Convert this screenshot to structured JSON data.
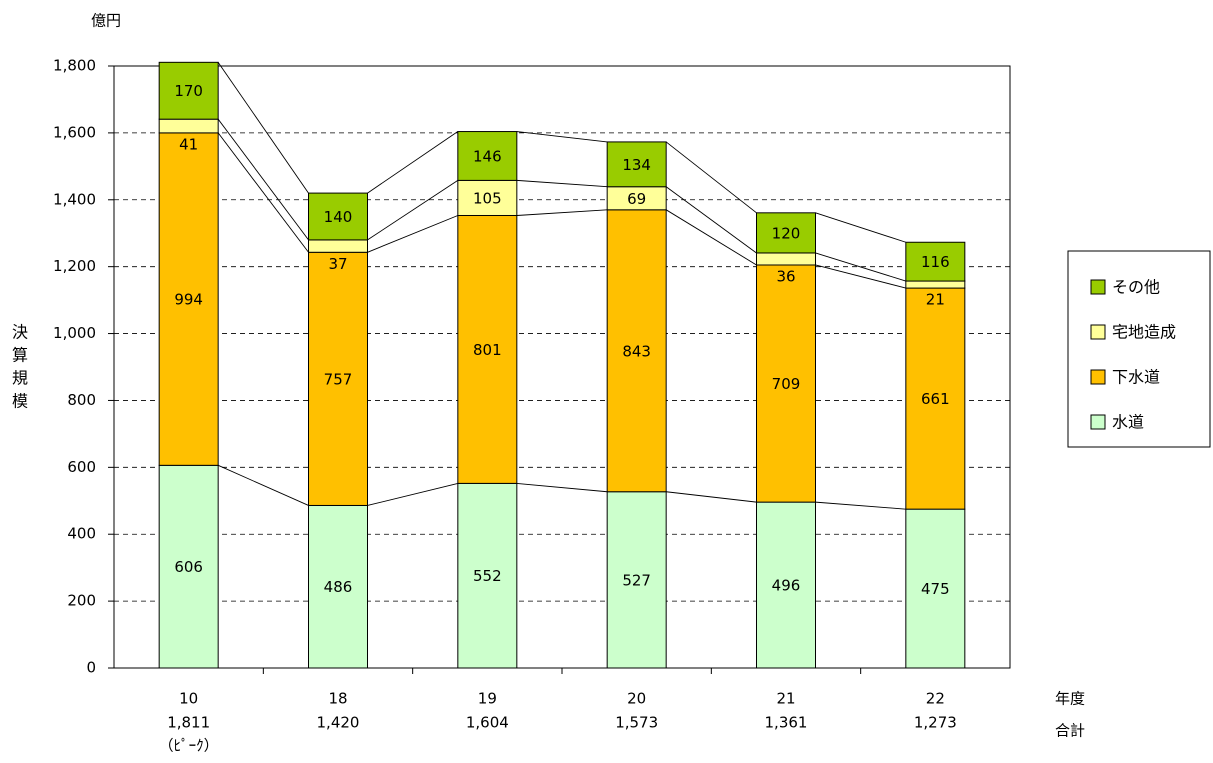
{
  "chart_data": {
    "type": "bar",
    "stacked": true,
    "unit_label": "億円",
    "ylabel": "決算規模",
    "xlabel_row1": "年度",
    "xlabel_row2": "合計",
    "categories": [
      "10",
      "18",
      "19",
      "20",
      "21",
      "22"
    ],
    "totals": [
      "1,811",
      "1,420",
      "1,604",
      "1,573",
      "1,361",
      "1,273"
    ],
    "category_notes": [
      "（ﾋﾟｰｸ）",
      "",
      "",
      "",
      "",
      ""
    ],
    "ylim": [
      0,
      1800
    ],
    "yticks": [
      0,
      200,
      400,
      600,
      800,
      1000,
      1200,
      1400,
      1600,
      1800
    ],
    "ytick_labels": [
      "0",
      "200",
      "400",
      "600",
      "800",
      "1,000",
      "1,200",
      "1,400",
      "1,600",
      "1,800"
    ],
    "grid": "dashed-horizontal",
    "legend_position": "right",
    "series": [
      {
        "name": "水道",
        "color": "#ccffcc",
        "values": [
          606,
          486,
          552,
          527,
          496,
          475
        ],
        "labels": [
          "606",
          "486",
          "552",
          "527",
          "496",
          "475"
        ]
      },
      {
        "name": "下水道",
        "color": "#ffc000",
        "values": [
          994,
          757,
          801,
          843,
          709,
          661
        ],
        "labels": [
          "994",
          "757",
          "801",
          "843",
          "709",
          "661"
        ]
      },
      {
        "name": "宅地造成",
        "color": "#ffff99",
        "values": [
          41,
          37,
          105,
          69,
          36,
          21
        ],
        "labels": [
          "41",
          "37",
          "105",
          "69",
          "36",
          "21"
        ]
      },
      {
        "name": "その他",
        "color": "#99cc00",
        "values": [
          170,
          140,
          146,
          134,
          120,
          116
        ],
        "labels": [
          "170",
          "140",
          "146",
          "134",
          "120",
          "116"
        ]
      }
    ],
    "legend_order": [
      "その他",
      "宅地造成",
      "下水道",
      "水道"
    ]
  }
}
